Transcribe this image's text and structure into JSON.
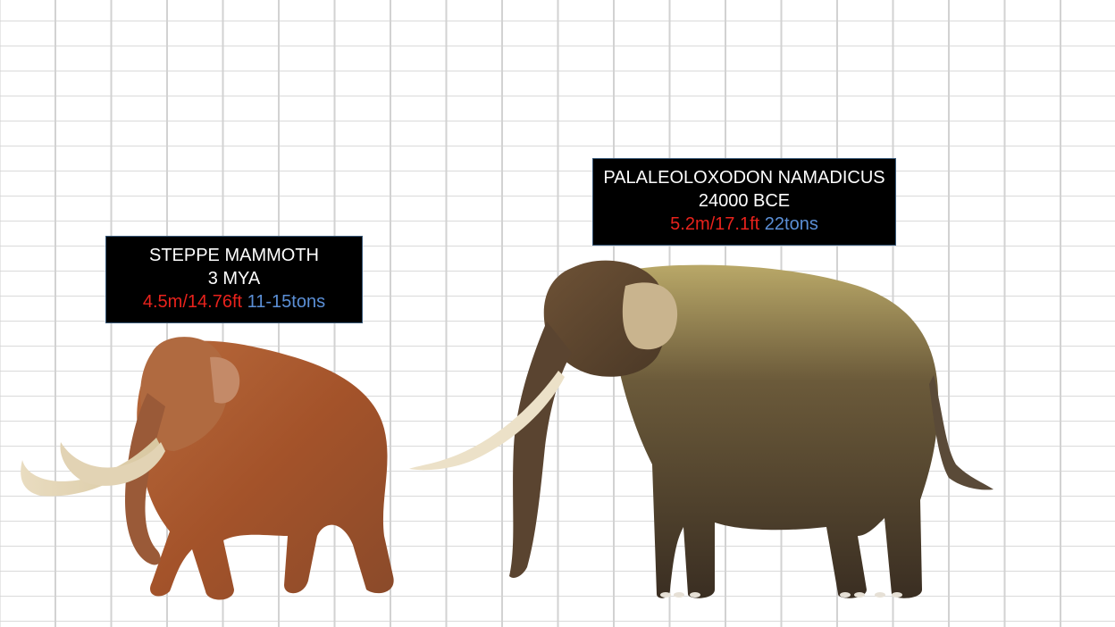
{
  "animals": [
    {
      "name": "STEPPE MAMMOTH",
      "era": "3 MYA",
      "height": "4.5m/14.76ft",
      "weight": "11-15tons",
      "icon": "mammoth-illustration"
    },
    {
      "name": "PALALEOLOXODON NAMADICUS",
      "era": "24000 BCE",
      "height": "5.2m/17.1ft",
      "weight": "22tons",
      "icon": "elephant-illustration"
    }
  ],
  "colors": {
    "height_text": "#e8221c",
    "weight_text": "#5b8fd6",
    "label_bg": "#000000",
    "grid": "#d2d2d2"
  }
}
